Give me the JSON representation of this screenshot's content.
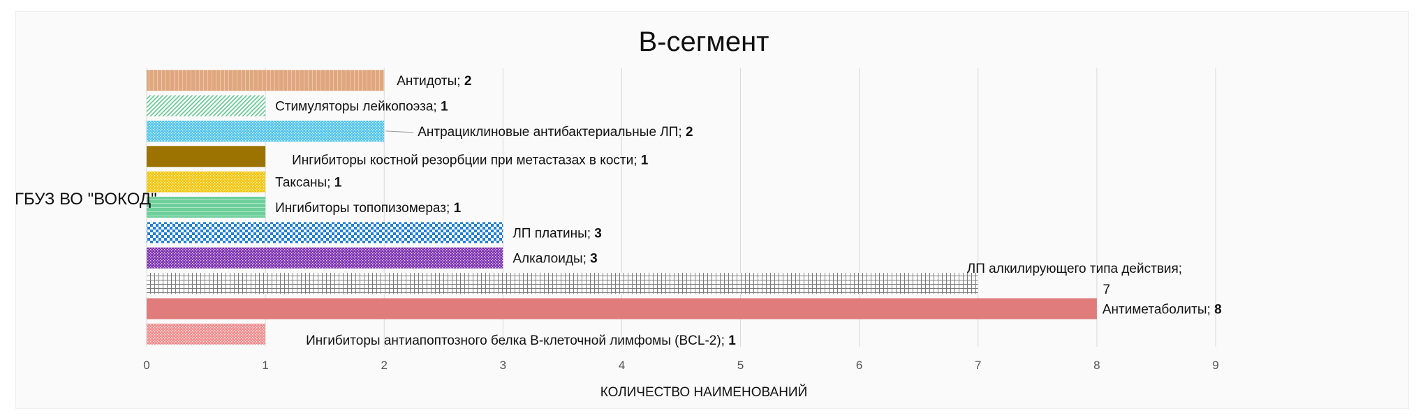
{
  "chart_data": {
    "type": "bar",
    "orientation": "horizontal",
    "title": "B-сегмент",
    "xlabel": "КОЛИЧЕСТВО НАИМЕНОВАНИЙ",
    "ylabel": "",
    "category": "ГБУЗ ВО \"ВОКОД\"",
    "xlim": [
      0,
      9
    ],
    "xticks": [
      "0",
      "1",
      "2",
      "3",
      "4",
      "5",
      "6",
      "7",
      "8",
      "9"
    ],
    "grid": true,
    "legend": "none",
    "series": [
      {
        "name": "Антидоты",
        "value": 2,
        "color": "#e0a77f",
        "pattern": "vertical-lines"
      },
      {
        "name": "Стимуляторы лейкопоэза",
        "value": 1,
        "color": "#5dc98a",
        "pattern": "diagonal-hatch"
      },
      {
        "name": "Антрациклиновые антибактериальные ЛП",
        "value": 2,
        "color": "#4fc3ea",
        "pattern": "dots"
      },
      {
        "name": "Ингибиторы костной резорбции при метастазах в кости",
        "value": 1,
        "color": "#9c7300",
        "pattern": "solid"
      },
      {
        "name": "Таксаны",
        "value": 1,
        "color": "#f3c300",
        "pattern": "dots"
      },
      {
        "name": "Ингибиторы топопизомераз",
        "value": 1,
        "color": "#6dcf9a",
        "pattern": "horizontal-lines"
      },
      {
        "name": "ЛП платины",
        "value": 3,
        "color": "#1f7fd6",
        "pattern": "checker"
      },
      {
        "name": "Алкалоиды",
        "value": 3,
        "color": "#7a2fb0",
        "pattern": "dots"
      },
      {
        "name": "ЛП алкилирующего типа действия",
        "value": 7,
        "color": "#7a7a7a",
        "pattern": "grid"
      },
      {
        "name": "Антиметаболиты",
        "value": 8,
        "color": "#e07c7c",
        "pattern": "solid"
      },
      {
        "name": "Ингибиторы антиапоптозного белка В-клеточной лимфомы (BCL-2)",
        "value": 1,
        "color": "#f08a8a",
        "pattern": "dots"
      }
    ],
    "data_labels": [
      {
        "text": "Антидоты; ",
        "num": "2"
      },
      {
        "text": "Стимуляторы лейкопоэза; ",
        "num": "1"
      },
      {
        "text": "Антрациклиновые антибактериальные ЛП; ",
        "num": "2"
      },
      {
        "text": "Ингибиторы костной резорбции при метастазах в кости; ",
        "num": "1"
      },
      {
        "text": "Таксаны; ",
        "num": "1"
      },
      {
        "text": "Ингибиторы  топопизомераз; ",
        "num": "1"
      },
      {
        "text": "ЛП платины; ",
        "num": "3"
      },
      {
        "text": "Алкалоиды; ",
        "num": "3"
      },
      {
        "text": "ЛП алкилирующего типа действия;",
        "num": "7"
      },
      {
        "text": "Антиметаболиты; ",
        "num": "8"
      },
      {
        "text": "Ингибиторы антиапоптозного белка В-клеточной лимфомы (BCL-2); ",
        "num": "1"
      }
    ]
  }
}
